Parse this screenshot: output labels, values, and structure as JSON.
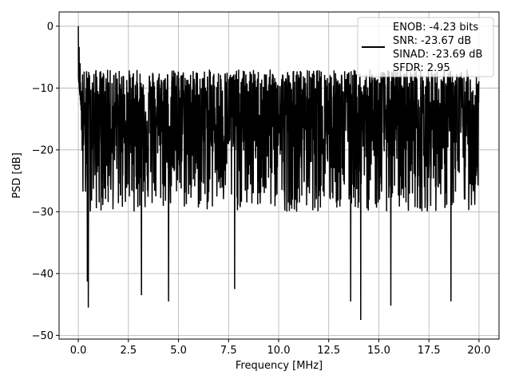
{
  "chart_data": {
    "type": "line",
    "title": "",
    "xlabel": "Frequency [MHz]",
    "ylabel": "PSD [dB]",
    "xlim": [
      -0.96,
      21.0
    ],
    "ylim": [
      -50.6,
      2.3
    ],
    "xticks": [
      0.0,
      2.5,
      5.0,
      7.5,
      10.0,
      12.5,
      15.0,
      17.5,
      20.0
    ],
    "xtick_labels": [
      "0.0",
      "2.5",
      "5.0",
      "7.5",
      "10.0",
      "12.5",
      "15.0",
      "17.5",
      "20.0"
    ],
    "yticks": [
      0,
      -10,
      -20,
      -30,
      -40,
      -50
    ],
    "ytick_labels": [
      "0",
      "−10",
      "−20",
      "−30",
      "−40",
      "−50"
    ],
    "grid": true,
    "legend_placement": "top-right",
    "series": [
      {
        "name": "PSD",
        "color": "#000000",
        "x_range": [
          0,
          20
        ],
        "n_points": 2000,
        "typical_upper_db": -7,
        "typical_lower_db": -30,
        "median_db": -16,
        "start_point": [
          0,
          0
        ],
        "notable_dips": [
          [
            0.45,
            -41.3
          ],
          [
            0.5,
            -45.5
          ],
          [
            3.15,
            -43.5
          ],
          [
            4.5,
            -44.5
          ],
          [
            7.8,
            -42.5
          ],
          [
            13.6,
            -44.5
          ],
          [
            14.1,
            -47.5
          ],
          [
            15.6,
            -45.2
          ],
          [
            18.6,
            -44.5
          ]
        ]
      }
    ],
    "legend": {
      "entries": [
        "ENOB: -4.23 bits",
        "SNR: -23.67 dB",
        "SINAD: -23.69 dB",
        "SFDR: 2.95"
      ]
    }
  }
}
